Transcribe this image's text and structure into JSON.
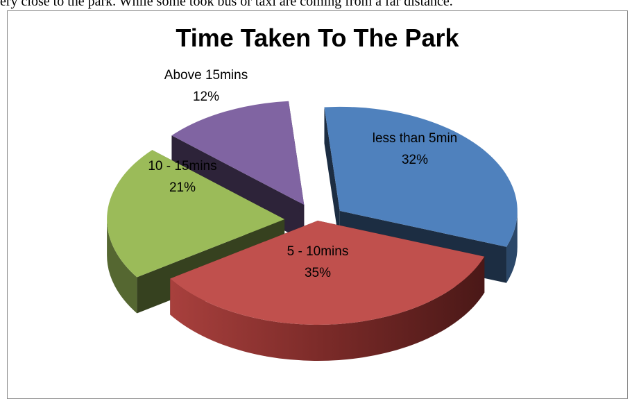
{
  "page": {
    "intro_text": "ery close to the park. While some took bus or taxi are coming from a far distance."
  },
  "chart_data": {
    "type": "pie",
    "title": "Time Taken To The Park",
    "categories": [
      "less than 5min",
      "5 - 10mins",
      "10 - 15mins",
      "Above 15mins"
    ],
    "values": [
      32,
      35,
      21,
      12
    ],
    "labels": [
      "32%",
      "35%",
      "21%",
      "12%"
    ],
    "colors": [
      "#4f81bd",
      "#c0504d",
      "#9bbb59",
      "#8064a2"
    ],
    "label_colors": [
      "#000000",
      "#000000",
      "#000000",
      "#000000"
    ],
    "style": "3d-exploded"
  }
}
